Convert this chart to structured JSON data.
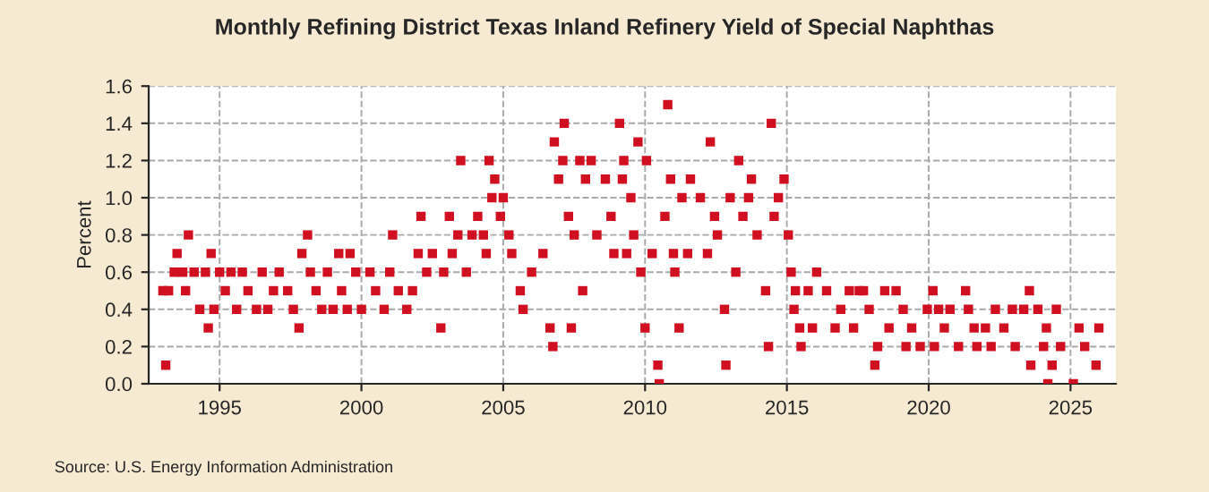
{
  "chart_data": {
    "type": "scatter",
    "title": "Monthly Refining District Texas Inland Refinery Yield of Special Naphthas",
    "ylabel": "Percent",
    "annotations": [
      "Source: U.S. Energy Information Administration"
    ],
    "xlim": [
      1992.5,
      2026.6
    ],
    "xticks": [
      1995,
      2000,
      2005,
      2010,
      2015,
      2020,
      2025
    ],
    "ylim": [
      0,
      1.6
    ],
    "yticks": [
      {
        "value": 0,
        "label": "0.0"
      },
      {
        "value": 0.2,
        "label": "0.2"
      },
      {
        "value": 0.4,
        "label": "0.4"
      },
      {
        "value": 0.6,
        "label": "0.6"
      },
      {
        "value": 0.8,
        "label": "0.8"
      },
      {
        "value": 1.0,
        "label": "1.0"
      },
      {
        "value": 1.2,
        "label": "1.2"
      },
      {
        "value": 1.4,
        "label": "1.4"
      },
      {
        "value": 1.6,
        "label": "1.6"
      }
    ],
    "grid": true,
    "marker": "square",
    "series": [
      {
        "color": "#d01020",
        "x": [
          1993.0,
          1993.1,
          1993.2,
          1993.4,
          1993.5,
          1993.7,
          1993.8,
          1993.9,
          1994.1,
          1994.3,
          1994.5,
          1994.6,
          1994.7,
          1994.8,
          1995.0,
          1995.2,
          1995.4,
          1995.6,
          1995.8,
          1996.0,
          1996.3,
          1996.5,
          1996.7,
          1996.9,
          1997.1,
          1997.4,
          1997.6,
          1997.8,
          1997.9,
          1998.1,
          1998.2,
          1998.4,
          1998.6,
          1998.8,
          1999.0,
          1999.2,
          1999.3,
          1999.5,
          1999.6,
          1999.8,
          2000.0,
          2000.3,
          2000.5,
          2000.8,
          2001.0,
          2001.1,
          2001.3,
          2001.6,
          2001.8,
          2002.0,
          2002.1,
          2002.3,
          2002.5,
          2002.8,
          2002.9,
          2003.1,
          2003.2,
          2003.4,
          2003.5,
          2003.7,
          2003.9,
          2004.1,
          2004.3,
          2004.4,
          2004.5,
          2004.6,
          2004.7,
          2004.9,
          2005.0,
          2005.2,
          2005.3,
          2005.6,
          2005.7,
          2006.0,
          2006.4,
          2006.65,
          2006.75,
          2006.8,
          2006.95,
          2007.1,
          2007.15,
          2007.3,
          2007.4,
          2007.5,
          2007.7,
          2007.8,
          2007.9,
          2008.1,
          2008.3,
          2008.6,
          2008.8,
          2008.9,
          2009.1,
          2009.2,
          2009.25,
          2009.35,
          2009.5,
          2009.6,
          2009.75,
          2009.85,
          2010.0,
          2010.05,
          2010.25,
          2010.45,
          2010.5,
          2010.7,
          2010.8,
          2010.9,
          2011.0,
          2011.05,
          2011.2,
          2011.3,
          2011.5,
          2011.6,
          2011.95,
          2012.2,
          2012.3,
          2012.45,
          2012.55,
          2012.8,
          2012.85,
          2013.0,
          2013.2,
          2013.3,
          2013.45,
          2013.65,
          2013.75,
          2013.95,
          2014.25,
          2014.35,
          2014.45,
          2014.55,
          2014.7,
          2014.9,
          2015.05,
          2015.15,
          2015.25,
          2015.3,
          2015.45,
          2015.5,
          2015.75,
          2015.9,
          2016.05,
          2016.4,
          2016.7,
          2016.9,
          2017.2,
          2017.35,
          2017.55,
          2017.7,
          2017.9,
          2018.1,
          2018.2,
          2018.45,
          2018.6,
          2018.85,
          2019.1,
          2019.2,
          2019.4,
          2019.7,
          2019.95,
          2020.15,
          2020.2,
          2020.35,
          2020.55,
          2020.75,
          2021.05,
          2021.3,
          2021.4,
          2021.6,
          2021.7,
          2022.0,
          2022.2,
          2022.35,
          2022.65,
          2022.95,
          2023.05,
          2023.35,
          2023.55,
          2023.6,
          2023.85,
          2024.05,
          2024.15,
          2024.2,
          2024.35,
          2024.5,
          2024.65,
          2025.1,
          2025.3,
          2025.5,
          2025.9,
          2026.0
        ],
        "values": [
          0.5,
          0.1,
          0.5,
          0.6,
          0.7,
          0.6,
          0.5,
          0.8,
          0.6,
          0.4,
          0.6,
          0.3,
          0.7,
          0.4,
          0.6,
          0.5,
          0.6,
          0.4,
          0.6,
          0.5,
          0.4,
          0.6,
          0.4,
          0.5,
          0.6,
          0.5,
          0.4,
          0.3,
          0.7,
          0.8,
          0.6,
          0.5,
          0.4,
          0.6,
          0.4,
          0.7,
          0.5,
          0.4,
          0.7,
          0.6,
          0.4,
          0.6,
          0.5,
          0.4,
          0.6,
          0.8,
          0.5,
          0.4,
          0.5,
          0.7,
          0.9,
          0.6,
          0.7,
          0.3,
          0.6,
          0.9,
          0.7,
          0.8,
          1.2,
          0.6,
          0.8,
          0.9,
          0.8,
          0.7,
          1.2,
          1.0,
          1.1,
          0.9,
          1.0,
          0.8,
          0.7,
          0.5,
          0.4,
          0.6,
          0.7,
          0.3,
          0.2,
          1.3,
          1.1,
          1.2,
          1.4,
          0.9,
          0.3,
          0.8,
          1.2,
          0.5,
          1.1,
          1.2,
          0.8,
          1.1,
          0.9,
          0.7,
          1.4,
          1.1,
          1.2,
          0.7,
          1.0,
          0.8,
          1.3,
          0.6,
          0.3,
          1.2,
          0.7,
          0.1,
          0.0,
          0.9,
          1.5,
          1.1,
          0.7,
          0.6,
          0.3,
          1.0,
          0.7,
          1.1,
          1.0,
          0.7,
          1.3,
          0.9,
          0.8,
          0.4,
          0.1,
          1.0,
          0.6,
          1.2,
          0.9,
          1.0,
          1.1,
          0.8,
          0.5,
          0.2,
          1.4,
          0.9,
          1.0,
          1.1,
          0.8,
          0.6,
          0.4,
          0.5,
          0.3,
          0.2,
          0.5,
          0.3,
          0.6,
          0.5,
          0.3,
          0.4,
          0.5,
          0.3,
          0.5,
          0.5,
          0.4,
          0.1,
          0.2,
          0.5,
          0.3,
          0.5,
          0.4,
          0.2,
          0.3,
          0.2,
          0.4,
          0.5,
          0.2,
          0.4,
          0.3,
          0.4,
          0.2,
          0.5,
          0.4,
          0.3,
          0.2,
          0.3,
          0.2,
          0.4,
          0.3,
          0.4,
          0.2,
          0.4,
          0.5,
          0.1,
          0.4,
          0.2,
          0.3,
          0.0,
          0.1,
          0.4,
          0.2,
          0.0,
          0.3,
          0.2,
          0.1,
          0.3
        ]
      }
    ]
  }
}
